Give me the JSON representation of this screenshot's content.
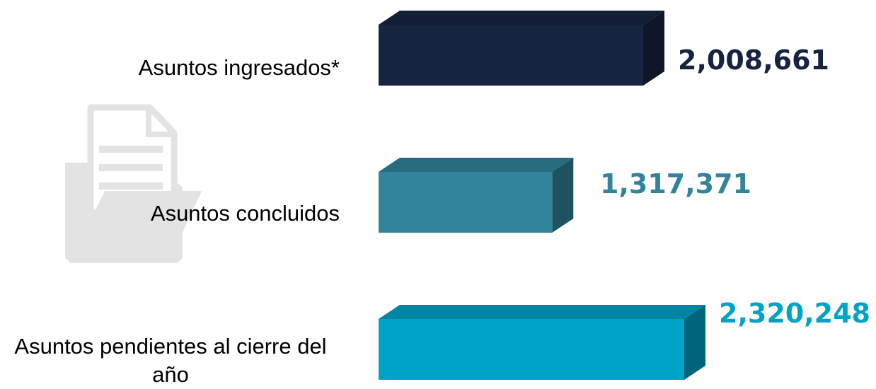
{
  "chart_data": {
    "type": "bar",
    "orientation": "horizontal",
    "style": "3d",
    "categories": [
      "Asuntos ingresados*",
      "Asuntos concluidos",
      "Asuntos pendientes al cierre del año"
    ],
    "values": [
      2008661,
      1317371,
      2320248
    ],
    "value_labels": [
      "2,008,661",
      "1,317,371",
      "2,320,248"
    ],
    "colors": [
      "#16243f",
      "#31849b",
      "#00a3c8"
    ],
    "label_colors": [
      "#16243f",
      "#31849b",
      "#00a3c8"
    ],
    "title": "",
    "xlabel": "",
    "ylabel": "",
    "grid": false,
    "legend": "none"
  },
  "decoration": {
    "icon": "document-folder-icon"
  }
}
